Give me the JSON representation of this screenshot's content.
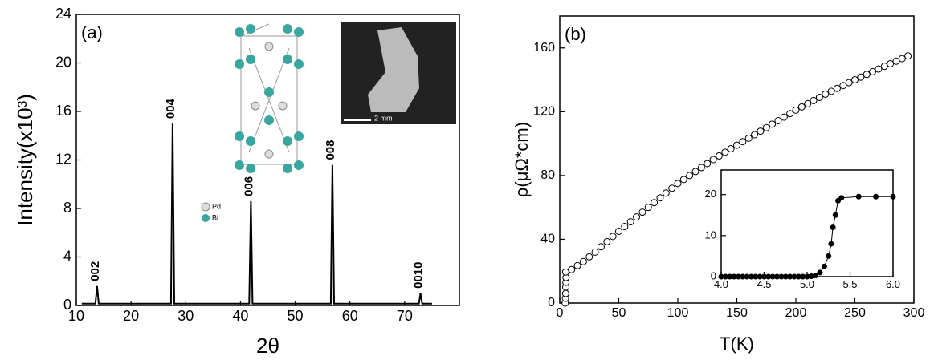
{
  "chart_data": [
    {
      "type": "line",
      "panel_label": "(a)",
      "x_label": "2θ",
      "y_label": "Intensity(x10³)",
      "x": [
        11,
        13.5,
        13.8,
        14.1,
        27.3,
        27.6,
        27.9,
        41.6,
        41.9,
        42.2,
        56.5,
        56.8,
        57.1,
        72.6,
        72.9,
        73.2,
        75
      ],
      "values": [
        0.15,
        0.15,
        1.6,
        0.15,
        0.15,
        15,
        0.15,
        0.15,
        8.6,
        0.15,
        0.15,
        11.6,
        0.15,
        0.15,
        1.0,
        0.15,
        0.15
      ],
      "color": "#000000",
      "peak_labels": [
        "002",
        "004",
        "006",
        "008",
        "0010"
      ],
      "legend_labels": [
        "Pd",
        "Bi"
      ],
      "scale_bar_label": "2 mm",
      "xlim": [
        10,
        80
      ],
      "xticks": [
        10,
        20,
        30,
        40,
        50,
        60,
        70
      ],
      "ylim": [
        0,
        24
      ],
      "yticks": [
        0,
        4,
        8,
        12,
        16,
        20,
        24
      ]
    },
    {
      "type": "scatter",
      "panel_label": "(b)",
      "x_label": "T(K)",
      "y_label": "ρ(μΩ*cm)",
      "x": [
        4.6,
        4.8,
        5.0,
        5.1,
        5.2,
        5.3,
        5,
        10,
        15,
        20,
        25,
        30,
        35,
        40,
        45,
        50,
        55,
        60,
        65,
        70,
        75,
        80,
        85,
        90,
        95,
        100,
        105,
        110,
        115,
        120,
        125,
        130,
        135,
        140,
        145,
        150,
        155,
        160,
        165,
        170,
        175,
        180,
        185,
        190,
        195,
        200,
        205,
        210,
        215,
        220,
        225,
        230,
        235,
        240,
        245,
        250,
        255,
        260,
        265,
        270,
        275,
        280,
        285,
        290,
        295
      ],
      "values": [
        0,
        3,
        6,
        10,
        13,
        16,
        19.5,
        21,
        23.5,
        26,
        29,
        32,
        35.3,
        38.5,
        41.8,
        45,
        48,
        51,
        54,
        57,
        60,
        63,
        66,
        69,
        72,
        75,
        77.5,
        80,
        82.5,
        85,
        87.5,
        90,
        92.3,
        94.6,
        96.8,
        99,
        101.2,
        103.4,
        105.6,
        107.8,
        110,
        112.2,
        114.4,
        116.6,
        118.8,
        121,
        123,
        125,
        127,
        129,
        131,
        132.8,
        134.6,
        136.4,
        138.2,
        140,
        141.7,
        143.4,
        145.1,
        146.8,
        148.5,
        150.1,
        151.7,
        153.3,
        155
      ],
      "color": "#000000",
      "marker_fill": "none",
      "connect": false,
      "xlim": [
        0,
        300
      ],
      "xticks": [
        0,
        50,
        100,
        150,
        200,
        250,
        300
      ],
      "ylim": [
        0,
        180
      ],
      "yticks": [
        0,
        40,
        80,
        120,
        160
      ]
    },
    {
      "type": "scatter",
      "x": [
        4.0,
        4.05,
        4.1,
        4.15,
        4.2,
        4.25,
        4.3,
        4.35,
        4.4,
        4.45,
        4.5,
        4.55,
        4.6,
        4.65,
        4.7,
        4.75,
        4.8,
        4.85,
        4.9,
        4.95,
        5.0,
        5.05,
        5.1,
        5.15,
        5.2,
        5.25,
        5.28,
        5.3,
        5.33,
        5.36,
        5.4,
        5.6,
        5.8,
        6.0
      ],
      "values": [
        0,
        0,
        0,
        0,
        0,
        0,
        0,
        0,
        0,
        0,
        0,
        0,
        0,
        0,
        0,
        0,
        0,
        0,
        0,
        0,
        0,
        0.1,
        0.3,
        1,
        2.5,
        5,
        8,
        12,
        15,
        18.5,
        19.2,
        19.5,
        19.5,
        19.5
      ],
      "color": "#000000",
      "marker_fill": "#000000",
      "connect": true,
      "xlim": [
        4,
        6
      ],
      "xticks": [
        {
          "value": 4,
          "label": "4.0"
        },
        {
          "value": 4.5,
          "label": "4.5"
        },
        {
          "value": 5,
          "label": "5.0"
        },
        {
          "value": 5.5,
          "label": "5.5"
        },
        {
          "value": 6,
          "label": "6.0"
        }
      ],
      "ylim": [
        0,
        26
      ],
      "yticks": [
        0,
        10,
        20
      ]
    }
  ]
}
